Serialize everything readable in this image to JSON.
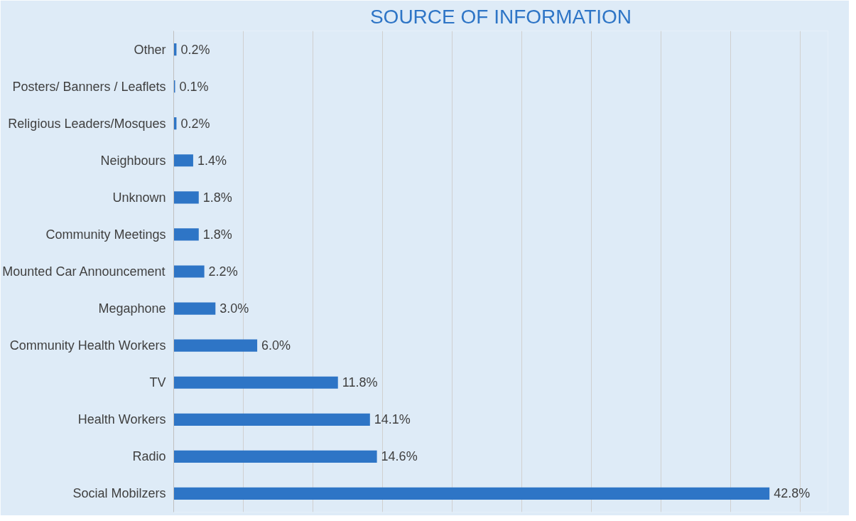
{
  "chart_data": {
    "type": "bar",
    "orientation": "horizontal",
    "title": "SOURCE OF INFORMATION",
    "categories": [
      "Other",
      "Posters/ Banners / Leaflets",
      "Religious Leaders/Mosques",
      "Neighbours",
      "Unknown",
      "Community Meetings",
      "Mounted Car Announcement",
      "Megaphone",
      "Community Health Workers",
      "TV",
      "Health Workers",
      "Radio",
      "Social Mobilzers"
    ],
    "values": [
      0.2,
      0.1,
      0.2,
      1.4,
      1.8,
      1.8,
      2.2,
      3.0,
      6.0,
      11.8,
      14.1,
      14.6,
      42.8
    ],
    "value_labels": [
      "0.2%",
      "0.1%",
      "0.2%",
      "1.4%",
      "1.8%",
      "1.8%",
      "2.2%",
      "3.0%",
      "6.0%",
      "11.8%",
      "14.1%",
      "14.6%",
      "42.8%"
    ],
    "color": "#2e75c6",
    "xlim": [
      0,
      47
    ],
    "xticks": [
      {
        "value": 0,
        "label": null
      },
      {
        "value": 5,
        "label": null
      },
      {
        "value": 10,
        "label": null
      },
      {
        "value": 15,
        "label": null
      },
      {
        "value": 20,
        "label": null
      },
      {
        "value": 25,
        "label": null
      },
      {
        "value": 30,
        "label": null
      },
      {
        "value": 35,
        "label": null
      },
      {
        "value": 40,
        "label": null
      },
      {
        "value": 45,
        "label": null
      }
    ],
    "grid": "x",
    "tick_labels": "y"
  }
}
